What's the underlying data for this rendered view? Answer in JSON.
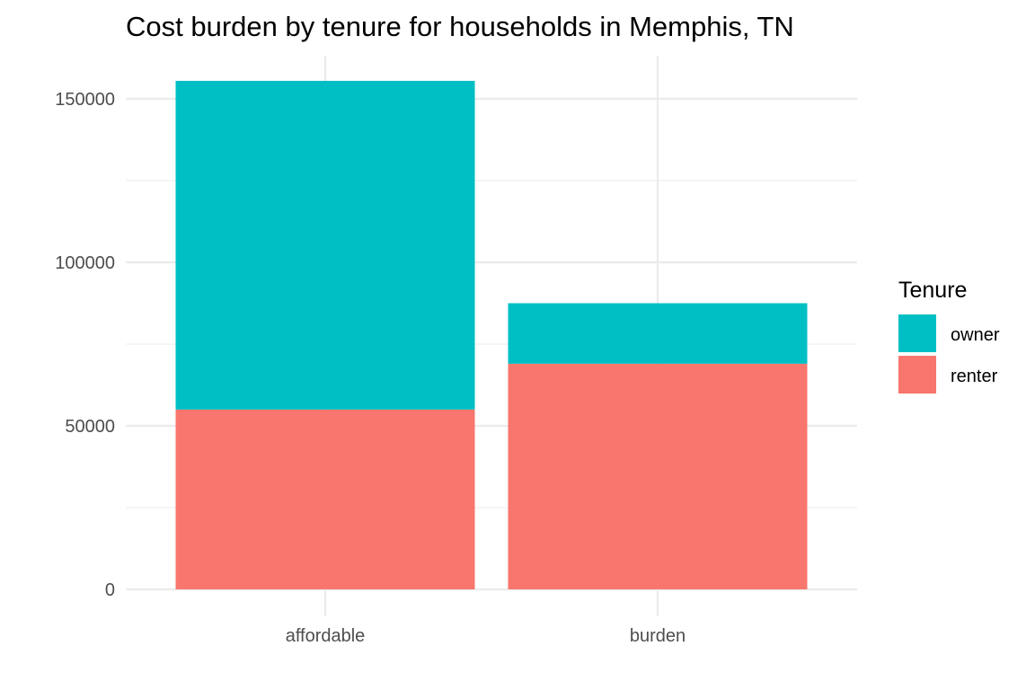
{
  "chart_data": {
    "type": "bar",
    "stacked": true,
    "title": "Cost burden by tenure for households in Memphis, TN",
    "xlabel": "",
    "ylabel": "",
    "categories": [
      "affordable",
      "burden"
    ],
    "series": [
      {
        "name": "renter",
        "values": [
          55000,
          69000
        ],
        "color": "#F8766D"
      },
      {
        "name": "owner",
        "values": [
          100500,
          18500
        ],
        "color": "#00BFC4"
      }
    ],
    "ylim": [
      0,
      160000
    ],
    "yticks": [
      0,
      50000,
      100000,
      150000
    ],
    "y_minor_ticks": [
      25000,
      75000,
      125000
    ],
    "grid": true,
    "legend": {
      "title": "Tenure",
      "position": "right",
      "entries": [
        {
          "label": "owner",
          "color": "#00BFC4"
        },
        {
          "label": "renter",
          "color": "#F8766D"
        }
      ]
    }
  }
}
